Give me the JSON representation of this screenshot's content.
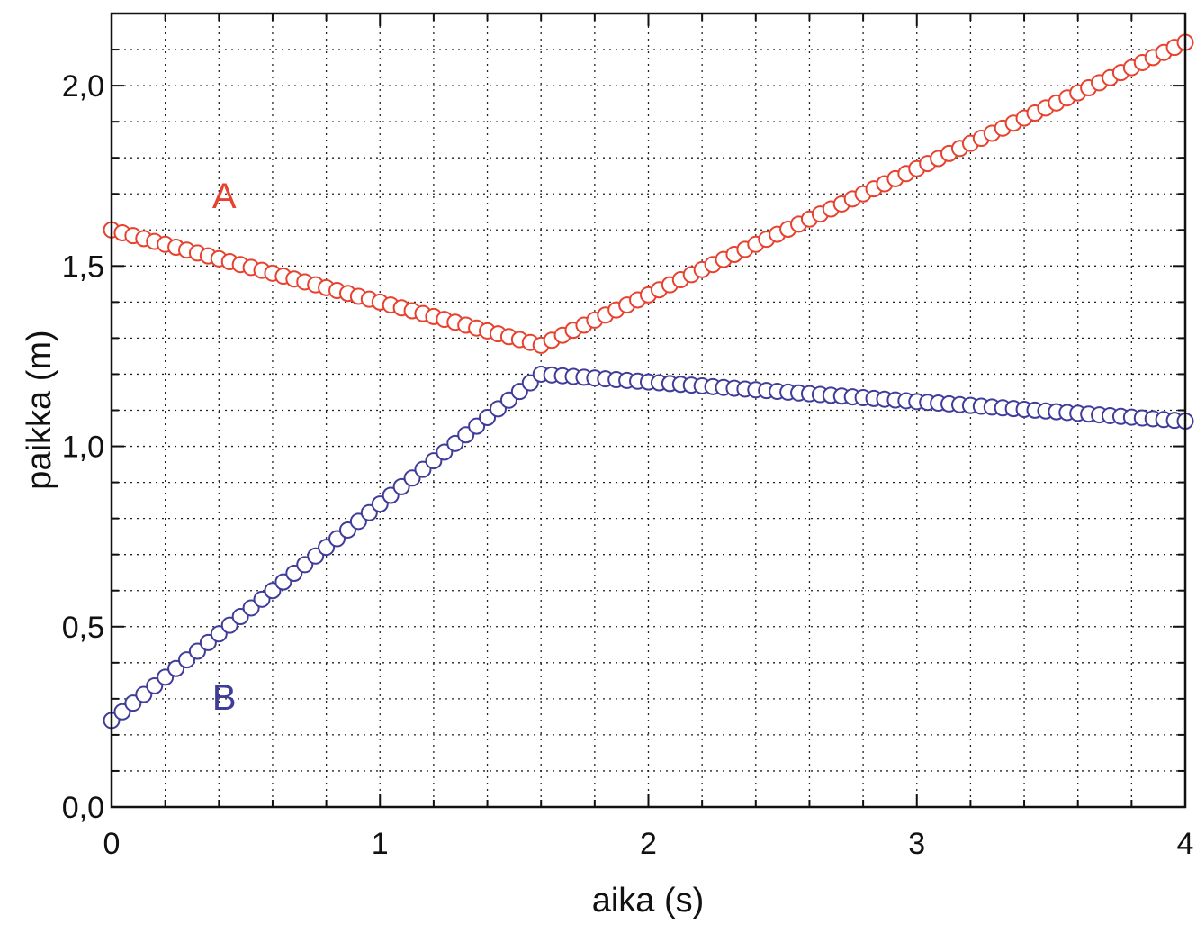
{
  "chart_data": {
    "type": "scatter",
    "title": "",
    "xlabel": "aika (s)",
    "ylabel": "paikka (m)",
    "xlim": [
      0,
      4
    ],
    "ylim": [
      0,
      2.2
    ],
    "grid": true,
    "x_ticks": [
      {
        "value": 0,
        "label": "0"
      },
      {
        "value": 1,
        "label": "1"
      },
      {
        "value": 2,
        "label": "2"
      },
      {
        "value": 3,
        "label": "3"
      },
      {
        "value": 4,
        "label": "4"
      }
    ],
    "y_ticks": [
      {
        "value": 0.0,
        "label": "0,0"
      },
      {
        "value": 0.5,
        "label": "0,5"
      },
      {
        "value": 1.0,
        "label": "1,0"
      },
      {
        "value": 1.5,
        "label": "1,5"
      },
      {
        "value": 2.0,
        "label": "2,0"
      }
    ],
    "series": [
      {
        "name": "A",
        "color": "#e8412e",
        "marker": "open-circle",
        "label_at": {
          "x": 0.42,
          "y": 1.66
        },
        "segments": [
          {
            "x0": 0.0,
            "x1": 1.6,
            "y0": 1.6,
            "y1": 1.28
          },
          {
            "x0": 1.6,
            "x1": 4.0,
            "y0": 1.28,
            "y1": 2.12
          }
        ],
        "sample_step": 0.04
      },
      {
        "name": "B",
        "color": "#3f3c9a",
        "marker": "open-circle",
        "label_at": {
          "x": 0.42,
          "y": 0.27
        },
        "segments": [
          {
            "x0": 0.0,
            "x1": 1.6,
            "y0": 0.24,
            "y1": 1.2
          },
          {
            "x0": 1.6,
            "x1": 4.0,
            "y0": 1.2,
            "y1": 1.07
          }
        ],
        "sample_step": 0.04
      }
    ]
  }
}
